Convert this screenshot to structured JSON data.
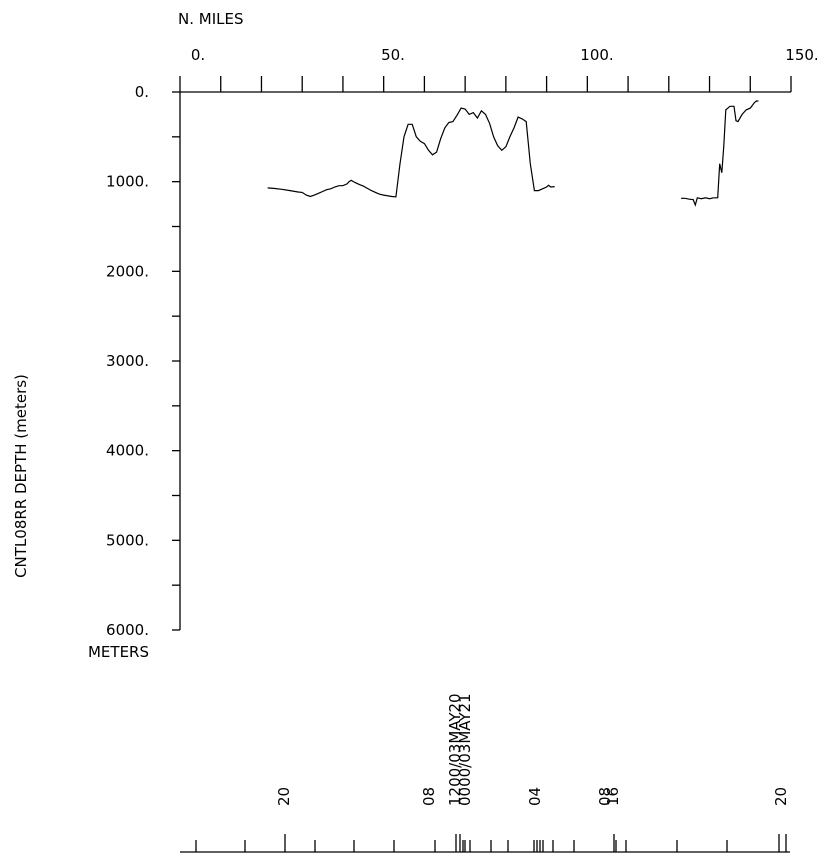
{
  "chart_data": {
    "type": "line",
    "title": "",
    "x_axis_label": "N. MILES",
    "y_axis_label": "CNTL08RR DEPTH (meters)",
    "y_unit_label": "METERS",
    "x_ticks": [
      "0.",
      "50.",
      "100.",
      "150."
    ],
    "y_ticks": [
      "0.",
      "1000.",
      "2000.",
      "3000.",
      "4000.",
      "5000.",
      "6000."
    ],
    "xlim": [
      0,
      150
    ],
    "ylim": [
      0,
      6000
    ],
    "y_inverted": true,
    "series": [
      {
        "name": "",
        "segments": [
          [
            [
              21.5,
              1070
            ],
            [
              23,
              1075
            ],
            [
              25,
              1085
            ],
            [
              27,
              1100
            ],
            [
              29,
              1115
            ],
            [
              30,
              1120
            ],
            [
              31,
              1150
            ],
            [
              32,
              1165
            ],
            [
              33,
              1150
            ],
            [
              34,
              1130
            ],
            [
              35,
              1110
            ],
            [
              36,
              1090
            ],
            [
              37,
              1080
            ],
            [
              38,
              1060
            ],
            [
              39,
              1045
            ],
            [
              40,
              1045
            ],
            [
              41,
              1025
            ],
            [
              41.5,
              1000
            ],
            [
              42,
              985
            ],
            [
              43,
              1010
            ],
            [
              44,
              1030
            ],
            [
              45,
              1050
            ],
            [
              46,
              1075
            ],
            [
              47,
              1100
            ],
            [
              48,
              1120
            ],
            [
              49,
              1140
            ],
            [
              50,
              1150
            ],
            [
              52,
              1165
            ],
            [
              53,
              1170
            ],
            [
              54,
              800
            ],
            [
              55,
              500
            ],
            [
              56,
              360
            ],
            [
              57,
              360
            ],
            [
              58,
              500
            ],
            [
              59,
              550
            ],
            [
              60,
              575
            ],
            [
              61,
              650
            ],
            [
              62,
              700
            ],
            [
              63,
              670
            ],
            [
              64,
              520
            ],
            [
              65,
              400
            ],
            [
              66,
              340
            ],
            [
              67,
              330
            ],
            [
              68,
              260
            ],
            [
              69,
              180
            ],
            [
              70,
              190
            ],
            [
              71,
              250
            ],
            [
              72,
              230
            ],
            [
              73,
              290
            ],
            [
              74,
              210
            ],
            [
              75,
              250
            ],
            [
              76,
              350
            ],
            [
              77,
              500
            ],
            [
              78,
              600
            ],
            [
              79,
              650
            ],
            [
              80,
              610
            ],
            [
              81,
              500
            ],
            [
              82,
              400
            ],
            [
              83,
              280
            ],
            [
              84,
              300
            ],
            [
              85,
              330
            ],
            [
              86,
              800
            ],
            [
              87,
              1100
            ],
            [
              88,
              1100
            ],
            [
              89,
              1080
            ],
            [
              90,
              1060
            ],
            [
              90.5,
              1040
            ],
            [
              91,
              1060
            ],
            [
              92,
              1055
            ]
          ],
          [
            [
              123,
              1185
            ],
            [
              124,
              1185
            ],
            [
              125,
              1195
            ],
            [
              126,
              1200
            ],
            [
              126.5,
              1260
            ],
            [
              127,
              1180
            ],
            [
              128,
              1190
            ],
            [
              129,
              1180
            ],
            [
              130,
              1190
            ],
            [
              131,
              1180
            ],
            [
              132,
              1180
            ],
            [
              132.5,
              800
            ],
            [
              133,
              900
            ],
            [
              133.5,
              600
            ],
            [
              134,
              200
            ],
            [
              135,
              160
            ],
            [
              136,
              160
            ],
            [
              136.5,
              320
            ],
            [
              137,
              330
            ],
            [
              138,
              250
            ],
            [
              139,
              200
            ],
            [
              140,
              180
            ],
            [
              141,
              120
            ],
            [
              141.5,
              100
            ],
            [
              142,
              100
            ]
          ]
        ]
      }
    ],
    "time_labels": [
      "20",
      "08",
      "1200/03MAY20",
      "0000/03MAY21",
      "04",
      "08",
      "16",
      "20"
    ]
  }
}
